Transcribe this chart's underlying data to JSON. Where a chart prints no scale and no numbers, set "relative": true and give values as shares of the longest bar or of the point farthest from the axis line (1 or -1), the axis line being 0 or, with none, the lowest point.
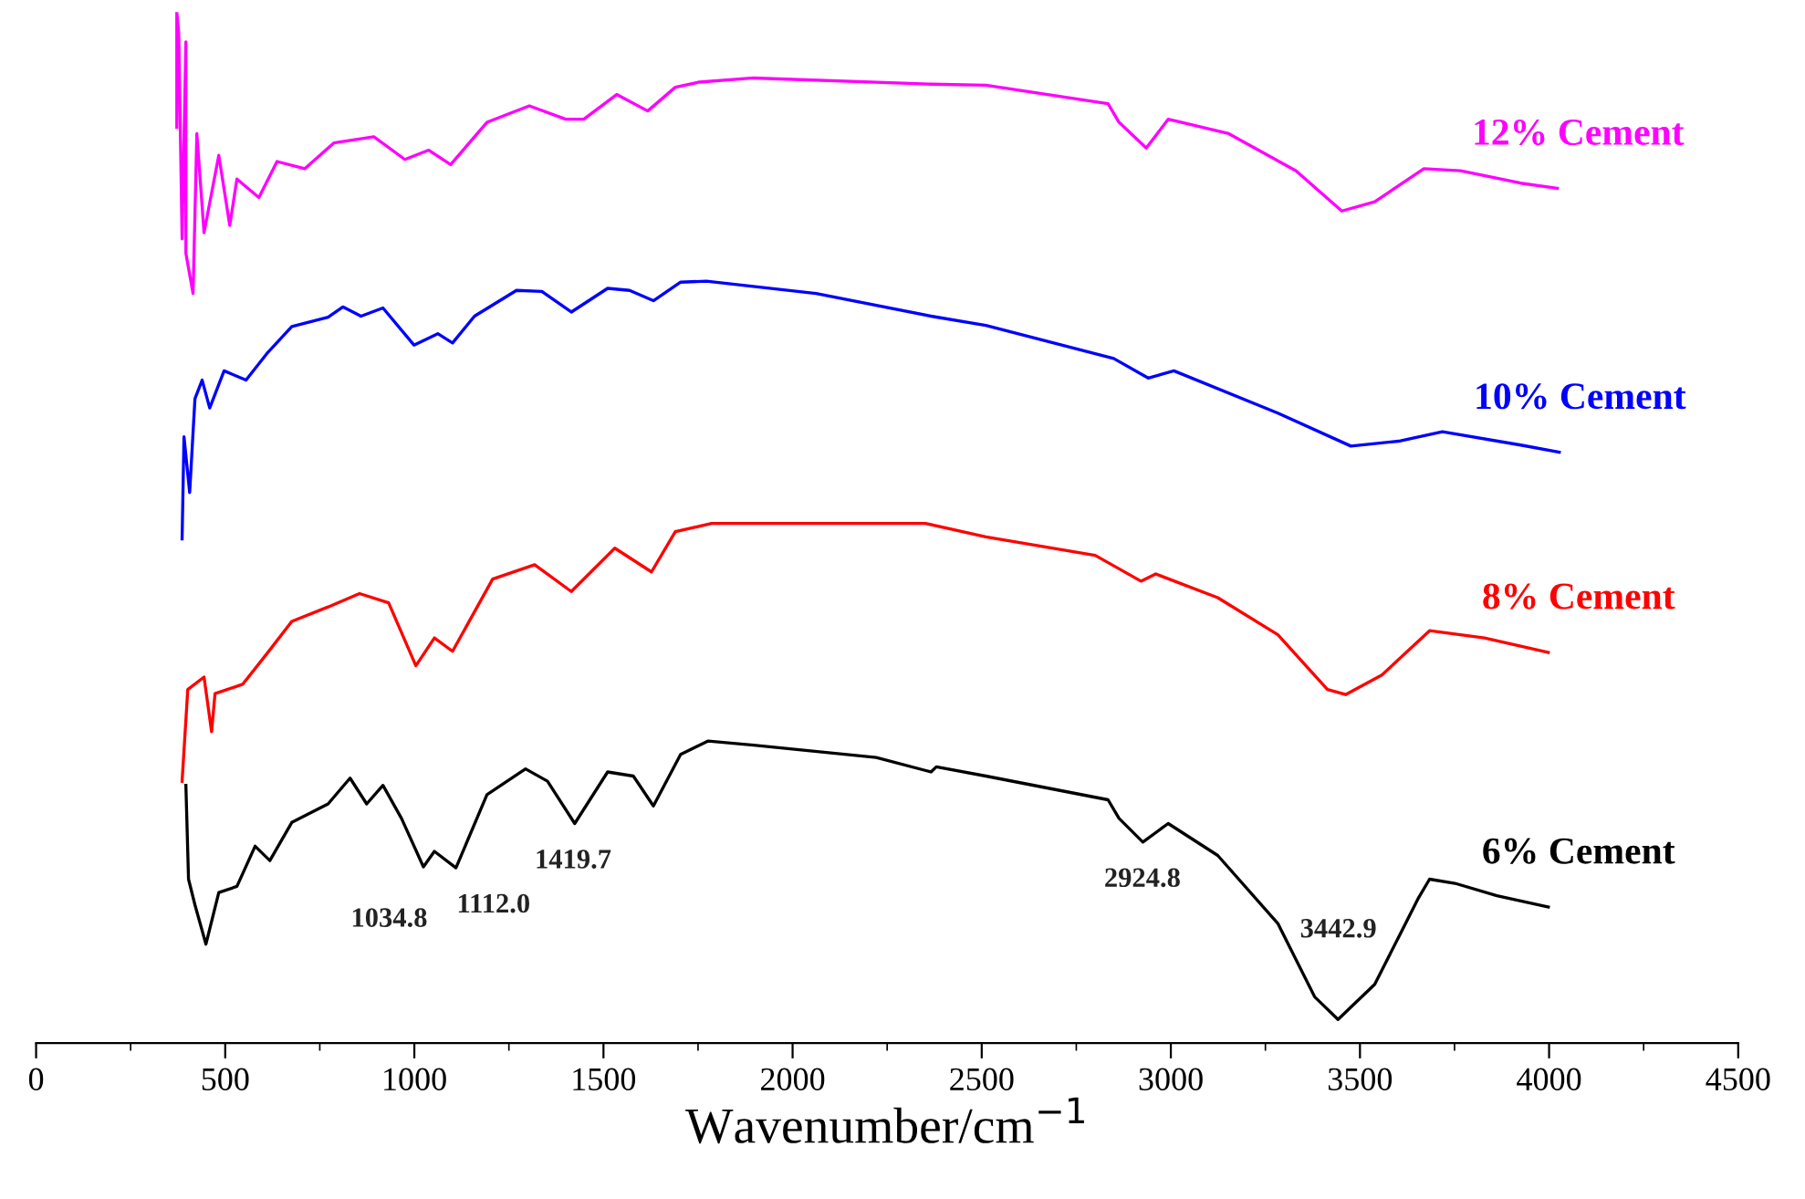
{
  "chart_data": {
    "type": "line",
    "relative": true,
    "xlabel": "Wavenumber/cm$^{−1}$",
    "xlim": [
      0,
      4500
    ],
    "xticks": [
      0,
      500,
      1000,
      1500,
      2000,
      2500,
      3000,
      3500,
      4000,
      4500
    ],
    "grid": false,
    "legend": false,
    "marker": "none",
    "line_style": "solid",
    "series": [
      {
        "name": "6% Cement",
        "color": "#000000",
        "x": [
          396,
          403,
          420,
          449,
          483,
          531,
          579,
          618,
          676,
          772,
          830,
          874,
          917,
          966,
          1024,
          1053,
          1110,
          1192,
          1294,
          1352,
          1424,
          1511,
          1579,
          1632,
          1704,
          1777,
          1897,
          2221,
          2366,
          2380,
          2511,
          2834,
          2863,
          2926,
          2993,
          3124,
          3283,
          3380,
          3442,
          3539,
          3655,
          3684,
          3751,
          3862,
          3998
        ],
        "values": [
          0.25,
          0.159,
          0.134,
          0.096,
          0.146,
          0.152,
          0.191,
          0.177,
          0.214,
          0.232,
          0.257,
          0.232,
          0.25,
          0.218,
          0.171,
          0.186,
          0.17,
          0.241,
          0.266,
          0.254,
          0.213,
          0.263,
          0.259,
          0.23,
          0.28,
          0.293,
          0.289,
          0.277,
          0.263,
          0.268,
          0.259,
          0.236,
          0.218,
          0.195,
          0.213,
          0.182,
          0.116,
          0.045,
          0.023,
          0.057,
          0.141,
          0.159,
          0.155,
          0.143,
          0.132
        ]
      },
      {
        "name": "8% Cement",
        "color": "#ff0000",
        "x": [
          386,
          401,
          444,
          464,
          473,
          546,
          613,
          676,
          772,
          855,
          932,
          1004,
          1053,
          1101,
          1207,
          1318,
          1415,
          1530,
          1627,
          1690,
          1786,
          2351,
          2511,
          2800,
          2921,
          2960,
          3124,
          3283,
          3414,
          3462,
          3558,
          3684,
          3829,
          3998
        ],
        "values": [
          0.254,
          0.343,
          0.355,
          0.302,
          0.339,
          0.348,
          0.379,
          0.409,
          0.423,
          0.436,
          0.427,
          0.366,
          0.393,
          0.38,
          0.45,
          0.464,
          0.438,
          0.48,
          0.457,
          0.496,
          0.504,
          0.504,
          0.491,
          0.473,
          0.448,
          0.455,
          0.432,
          0.396,
          0.343,
          0.338,
          0.357,
          0.4,
          0.393,
          0.379
        ]
      },
      {
        "name": "10% Cement",
        "color": "#0000ff",
        "x": [
          386,
          391,
          406,
          420,
          439,
          459,
          497,
          555,
          613,
          676,
          772,
          811,
          859,
          917,
          999,
          1062,
          1101,
          1159,
          1270,
          1337,
          1415,
          1511,
          1569,
          1632,
          1704,
          1772,
          2062,
          2366,
          2511,
          2849,
          2940,
          3008,
          3283,
          3476,
          3607,
          3718,
          3925,
          4027
        ],
        "values": [
          0.489,
          0.588,
          0.534,
          0.625,
          0.643,
          0.616,
          0.652,
          0.643,
          0.67,
          0.695,
          0.704,
          0.714,
          0.705,
          0.713,
          0.677,
          0.688,
          0.679,
          0.705,
          0.73,
          0.729,
          0.709,
          0.732,
          0.73,
          0.72,
          0.738,
          0.739,
          0.727,
          0.705,
          0.696,
          0.664,
          0.645,
          0.652,
          0.611,
          0.579,
          0.584,
          0.593,
          0.58,
          0.573
        ]
      },
      {
        "name": "12% Cement",
        "color": "#ff00ff",
        "x": [
          372,
          372,
          377,
          386,
          396,
          396,
          415,
          425,
          444,
          483,
          512,
          531,
          589,
          637,
          710,
          787,
          893,
          975,
          1038,
          1096,
          1192,
          1304,
          1400,
          1448,
          1535,
          1617,
          1690,
          1753,
          1897,
          2366,
          2511,
          2834,
          2863,
          2935,
          2993,
          3153,
          3331,
          3452,
          3539,
          3669,
          3766,
          3925,
          4022
        ],
        "values": [
          0.888,
          1,
          0.98,
          0.78,
          0.971,
          0.766,
          0.727,
          0.882,
          0.786,
          0.861,
          0.793,
          0.838,
          0.82,
          0.855,
          0.848,
          0.873,
          0.879,
          0.857,
          0.866,
          0.852,
          0.893,
          0.909,
          0.896,
          0.896,
          0.92,
          0.904,
          0.927,
          0.932,
          0.936,
          0.93,
          0.929,
          0.911,
          0.893,
          0.868,
          0.896,
          0.882,
          0.846,
          0.807,
          0.816,
          0.848,
          0.846,
          0.834,
          0.829
        ]
      }
    ],
    "annotations": [
      {
        "text": "1034.8",
        "x": 1034.8,
        "y": 0.171
      },
      {
        "text": "1112.0",
        "x": 1112.0,
        "y": 0.17
      },
      {
        "text": "1419.7",
        "x": 1419.7,
        "y": 0.213
      },
      {
        "text": "2924.8",
        "x": 2924.8,
        "y": 0.195
      },
      {
        "text": "3442.9",
        "x": 3442.9,
        "y": 0.023
      }
    ]
  }
}
